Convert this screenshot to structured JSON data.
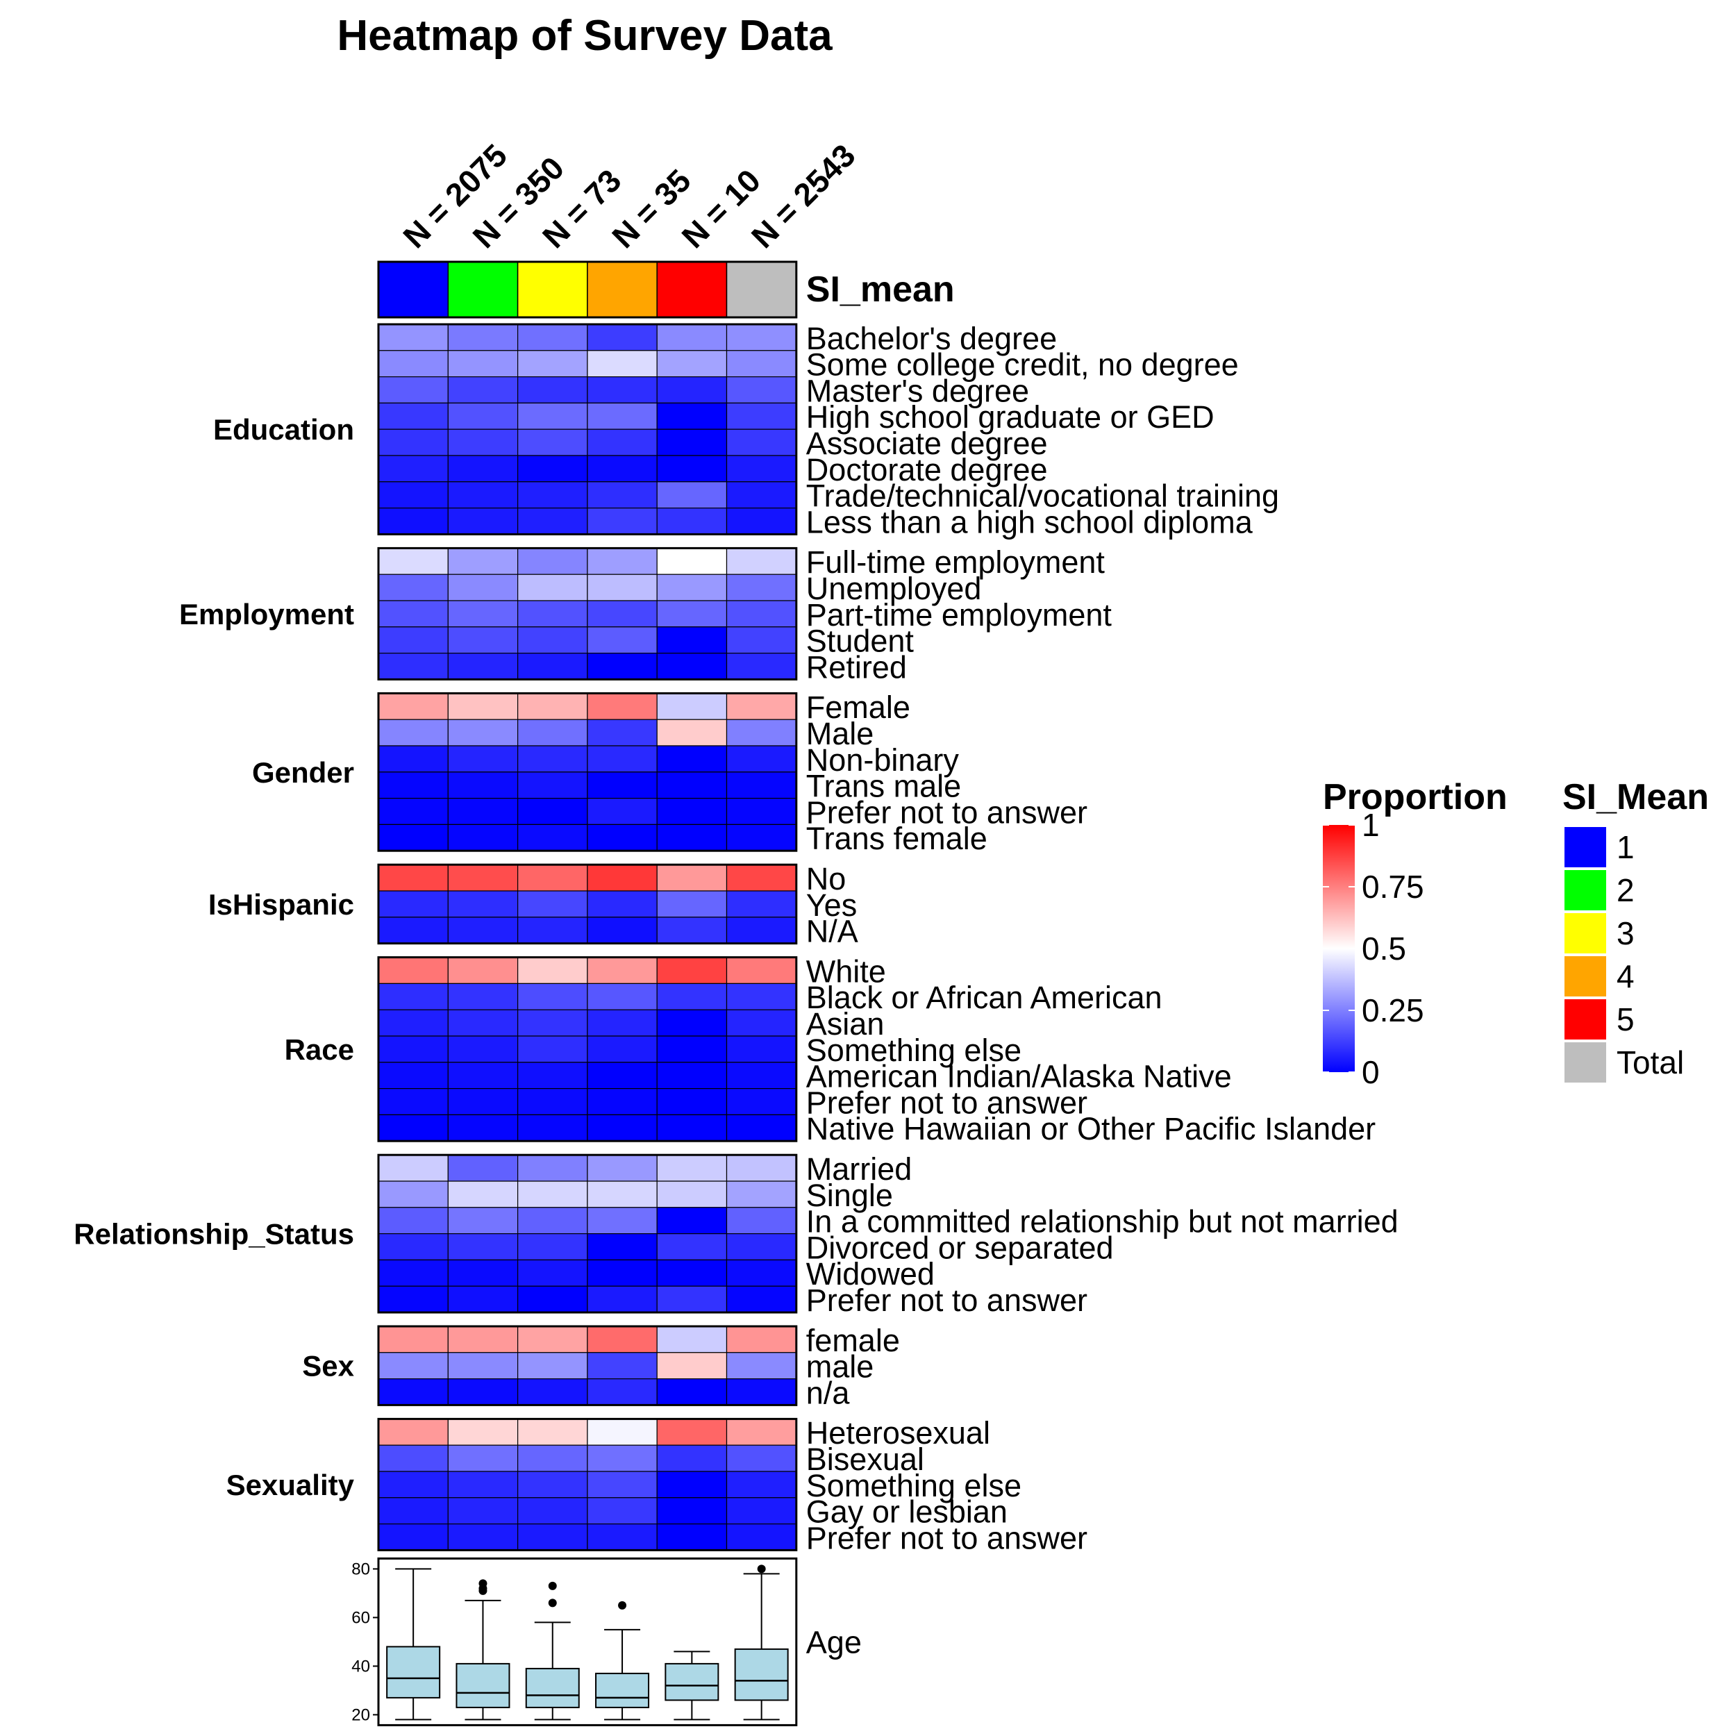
{
  "chart_data": {
    "type": "heatmap",
    "title": "Heatmap of Survey Data",
    "columns": [
      {
        "n_label": "N = 2075",
        "si": "1",
        "color": "#0000ff"
      },
      {
        "n_label": "N = 350",
        "si": "2",
        "color": "#00ff00"
      },
      {
        "n_label": "N = 73",
        "si": "3",
        "color": "#ffff00"
      },
      {
        "n_label": "N = 35",
        "si": "4",
        "color": "#ffa500"
      },
      {
        "n_label": "N = 10",
        "si": "5",
        "color": "#ff0000"
      },
      {
        "n_label": "N = 2543",
        "si": "Total",
        "color": "#bebebe"
      }
    ],
    "annotation_label": "SI_mean",
    "groups": [
      {
        "name": "Education",
        "rows": [
          {
            "label": "Bachelor's degree",
            "values": [
              0.29,
              0.24,
              0.22,
              0.12,
              0.27,
              0.28
            ]
          },
          {
            "label": "Some college credit, no degree",
            "values": [
              0.27,
              0.29,
              0.32,
              0.43,
              0.32,
              0.27
            ]
          },
          {
            "label": "Master's degree",
            "values": [
              0.18,
              0.13,
              0.1,
              0.09,
              0.07,
              0.17
            ]
          },
          {
            "label": "High school graduate or GED",
            "values": [
              0.11,
              0.16,
              0.21,
              0.21,
              0.0,
              0.12
            ]
          },
          {
            "label": "Associate degree",
            "values": [
              0.1,
              0.12,
              0.15,
              0.1,
              0.0,
              0.11
            ]
          },
          {
            "label": "Doctorate degree",
            "values": [
              0.06,
              0.04,
              0.01,
              0.02,
              0.0,
              0.05
            ]
          },
          {
            "label": "Trade/technical/vocational training",
            "values": [
              0.04,
              0.05,
              0.06,
              0.09,
              0.2,
              0.05
            ]
          },
          {
            "label": "Less than a high school diploma",
            "values": [
              0.03,
              0.05,
              0.06,
              0.12,
              0.1,
              0.04
            ]
          }
        ]
      },
      {
        "name": "Employment",
        "rows": [
          {
            "label": "Full-time employment",
            "values": [
              0.43,
              0.31,
              0.26,
              0.31,
              0.5,
              0.41
            ]
          },
          {
            "label": "Unemployed",
            "values": [
              0.2,
              0.27,
              0.37,
              0.37,
              0.3,
              0.22
            ]
          },
          {
            "label": "Part-time employment",
            "values": [
              0.16,
              0.2,
              0.16,
              0.14,
              0.2,
              0.16
            ]
          },
          {
            "label": "Student",
            "values": [
              0.12,
              0.15,
              0.13,
              0.18,
              0.0,
              0.13
            ]
          },
          {
            "label": "Retired",
            "values": [
              0.09,
              0.07,
              0.05,
              0.0,
              0.0,
              0.08
            ]
          }
        ]
      },
      {
        "name": "Gender",
        "rows": [
          {
            "label": "Female",
            "values": [
              0.68,
              0.62,
              0.65,
              0.76,
              0.4,
              0.67
            ]
          },
          {
            "label": "Male",
            "values": [
              0.26,
              0.27,
              0.22,
              0.11,
              0.6,
              0.25
            ]
          },
          {
            "label": "Non-binary",
            "values": [
              0.04,
              0.07,
              0.08,
              0.08,
              0.0,
              0.05
            ]
          },
          {
            "label": "Trans male",
            "values": [
              0.01,
              0.02,
              0.04,
              0.0,
              0.0,
              0.01
            ]
          },
          {
            "label": "Prefer not to answer",
            "values": [
              0.01,
              0.01,
              0.0,
              0.05,
              0.0,
              0.01
            ]
          },
          {
            "label": "Trans female",
            "values": [
              0.0,
              0.01,
              0.02,
              0.0,
              0.0,
              0.01
            ]
          }
        ]
      },
      {
        "name": "IsHispanic",
        "rows": [
          {
            "label": "No",
            "values": [
              0.86,
              0.85,
              0.8,
              0.89,
              0.7,
              0.86
            ]
          },
          {
            "label": "Yes",
            "values": [
              0.08,
              0.09,
              0.14,
              0.08,
              0.2,
              0.09
            ]
          },
          {
            "label": "N/A",
            "values": [
              0.05,
              0.06,
              0.07,
              0.03,
              0.1,
              0.05
            ]
          }
        ]
      },
      {
        "name": "Race",
        "rows": [
          {
            "label": "White",
            "values": [
              0.77,
              0.72,
              0.6,
              0.7,
              0.87,
              0.76
            ]
          },
          {
            "label": "Black or African American",
            "values": [
              0.09,
              0.1,
              0.15,
              0.17,
              0.1,
              0.1
            ]
          },
          {
            "label": "Asian",
            "values": [
              0.06,
              0.08,
              0.1,
              0.07,
              0.0,
              0.07
            ]
          },
          {
            "label": "Something else",
            "values": [
              0.04,
              0.05,
              0.09,
              0.05,
              0.0,
              0.04
            ]
          },
          {
            "label": "American Indian/Alaska Native",
            "values": [
              0.02,
              0.03,
              0.03,
              0.0,
              0.0,
              0.02
            ]
          },
          {
            "label": "Prefer not to answer",
            "values": [
              0.02,
              0.02,
              0.02,
              0.01,
              0.0,
              0.02
            ]
          },
          {
            "label": "Native Hawaiian or Other Pacific Islander",
            "values": [
              0.0,
              0.01,
              0.01,
              0.0,
              0.0,
              0.0
            ]
          }
        ]
      },
      {
        "name": "Relationship_Status",
        "rows": [
          {
            "label": "Married",
            "values": [
              0.4,
              0.19,
              0.25,
              0.3,
              0.4,
              0.38
            ]
          },
          {
            "label": "Single",
            "values": [
              0.3,
              0.42,
              0.42,
              0.42,
              0.4,
              0.32
            ]
          },
          {
            "label": "In a committed relationship but not married",
            "values": [
              0.18,
              0.23,
              0.19,
              0.22,
              0.0,
              0.19
            ]
          },
          {
            "label": "Divorced or separated",
            "values": [
              0.08,
              0.1,
              0.1,
              0.0,
              0.1,
              0.08
            ]
          },
          {
            "label": "Widowed",
            "values": [
              0.02,
              0.02,
              0.04,
              0.0,
              0.0,
              0.02
            ]
          },
          {
            "label": "Prefer not to answer",
            "values": [
              0.01,
              0.03,
              0.0,
              0.05,
              0.1,
              0.01
            ]
          }
        ]
      },
      {
        "name": "Sex",
        "rows": [
          {
            "label": "female",
            "values": [
              0.71,
              0.7,
              0.68,
              0.79,
              0.4,
              0.71
            ]
          },
          {
            "label": "male",
            "values": [
              0.27,
              0.27,
              0.29,
              0.13,
              0.6,
              0.27
            ]
          },
          {
            "label": "n/a",
            "values": [
              0.02,
              0.02,
              0.04,
              0.08,
              0.0,
              0.02
            ]
          }
        ]
      },
      {
        "name": "Sexuality",
        "rows": [
          {
            "label": "Heterosexual",
            "values": [
              0.7,
              0.58,
              0.58,
              0.48,
              0.8,
              0.69
            ]
          },
          {
            "label": "Bisexual",
            "values": [
              0.15,
              0.22,
              0.2,
              0.22,
              0.1,
              0.16
            ]
          },
          {
            "label": "Something else",
            "values": [
              0.06,
              0.08,
              0.1,
              0.14,
              0.0,
              0.06
            ]
          },
          {
            "label": "Gay or lesbian",
            "values": [
              0.05,
              0.07,
              0.07,
              0.11,
              0.0,
              0.05
            ]
          },
          {
            "label": "Prefer not to answer",
            "values": [
              0.04,
              0.05,
              0.05,
              0.05,
              0.0,
              0.04
            ]
          }
        ]
      }
    ],
    "age_boxplot": {
      "label": "Age",
      "ylim": [
        18,
        82
      ],
      "ticks": [
        20,
        40,
        60,
        80
      ],
      "fill": "#add8e6",
      "boxes": [
        {
          "min": 18,
          "q1": 27,
          "median": 35,
          "q3": 48,
          "max": 80,
          "outliers": []
        },
        {
          "min": 18,
          "q1": 23,
          "median": 29,
          "q3": 41,
          "max": 67,
          "outliers": [
            71,
            72,
            74
          ]
        },
        {
          "min": 18,
          "q1": 23,
          "median": 28,
          "q3": 39,
          "max": 58,
          "outliers": [
            66,
            73
          ]
        },
        {
          "min": 18,
          "q1": 23,
          "median": 27,
          "q3": 37,
          "max": 55,
          "outliers": [
            65
          ]
        },
        {
          "min": 18,
          "q1": 26,
          "median": 32,
          "q3": 41,
          "max": 46,
          "outliers": []
        },
        {
          "min": 18,
          "q1": 26,
          "median": 34,
          "q3": 47,
          "max": 78,
          "outliers": [
            80
          ]
        }
      ]
    },
    "legend_proportion": {
      "title": "Proportion",
      "ticks": [
        "0",
        "0.25",
        "0.5",
        "0.75",
        "1"
      ],
      "colors": {
        "low": "#0000ff",
        "mid": "#ffffff",
        "high": "#ff0000"
      }
    },
    "legend_si": {
      "title": "SI_Mean",
      "items": [
        {
          "label": "1",
          "color": "#0000ff"
        },
        {
          "label": "2",
          "color": "#00ff00"
        },
        {
          "label": "3",
          "color": "#ffff00"
        },
        {
          "label": "4",
          "color": "#ffa500"
        },
        {
          "label": "5",
          "color": "#ff0000"
        },
        {
          "label": "Total",
          "color": "#bebebe"
        }
      ]
    }
  }
}
